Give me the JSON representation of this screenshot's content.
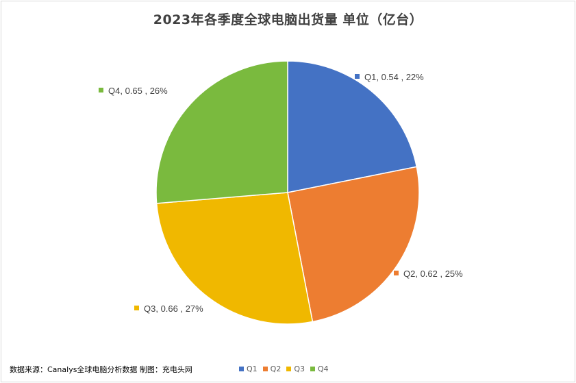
{
  "chart_data": {
    "type": "pie",
    "title": "2023年各季度全球电脑出货量 单位（亿台）",
    "categories": [
      "Q1",
      "Q2",
      "Q3",
      "Q4"
    ],
    "values": [
      0.54,
      0.62,
      0.66,
      0.65
    ],
    "percent_labels": [
      "22%",
      "25%",
      "27%",
      "26%"
    ],
    "data_labels": [
      "Q1, 0.54 , 22%",
      "Q2, 0.62 , 25%",
      "Q3, 0.66 , 27%",
      "Q4, 0.65 , 26%"
    ],
    "colors": [
      "#4472c4",
      "#ed7d31",
      "#f0b800",
      "#7aba3e"
    ],
    "legend_position": "bottom",
    "start_angle": "12 o'clock, clockwise"
  },
  "footer": {
    "source": "数据来源：Canalys全球电脑分析数据 制图：充电头网"
  }
}
